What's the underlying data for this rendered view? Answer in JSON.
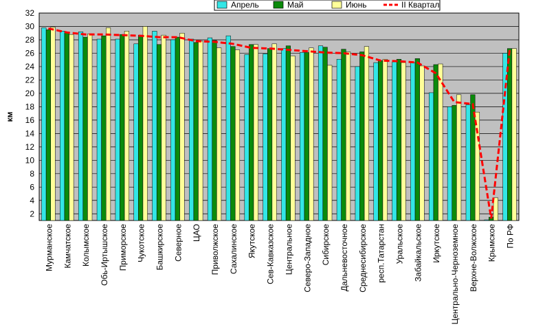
{
  "chart_data": {
    "type": "bar",
    "y_label": "км",
    "categories": [
      "Мурманское",
      "Камчатское",
      "Колымское",
      "Обь-Иртышское",
      "Приморское",
      "Чукотское",
      "Башкирское",
      "Северное",
      "ЦАО",
      "Приволжское",
      "Сахалинское",
      "Якутское",
      "Сев-Кавказское",
      "Центральное",
      "Северо-Западное",
      "Сибирское",
      "Дальневосточное",
      "Среднесибирское",
      "респ.Татарстан",
      "Уральское",
      "Забайкальское",
      "Иркутское",
      "Центрально-Черноземное",
      "Верхне-Волжское",
      "Крымское",
      "По РФ"
    ],
    "series": [
      {
        "name": "Апрель",
        "color": "#33e6e6",
        "values": [
          29.8,
          29.3,
          29.2,
          28.1,
          28.1,
          27.4,
          29.3,
          28.0,
          28.1,
          28.3,
          28.6,
          25.8,
          25.9,
          26.7,
          26.1,
          27.1,
          25.1,
          24.0,
          24.6,
          24.7,
          24.6,
          20.1,
          18.0,
          18.3,
          1.1,
          26.0
        ]
      },
      {
        "name": "Май",
        "color": "#0b8a0b",
        "values": [
          29.5,
          29.1,
          28.4,
          28.6,
          28.8,
          28.7,
          27.3,
          28.4,
          27.6,
          27.9,
          27.0,
          27.3,
          26.7,
          27.1,
          26.1,
          26.9,
          26.6,
          26.2,
          24.9,
          25.1,
          25.2,
          24.3,
          18.2,
          19.8,
          1.5,
          26.7
        ]
      },
      {
        "name": "Июнь",
        "color": "#ffff99",
        "values": [
          29.9,
          28.8,
          28.9,
          29.8,
          29.3,
          30.0,
          28.7,
          29.0,
          27.8,
          26.8,
          26.5,
          27.3,
          27.4,
          25.6,
          26.8,
          24.2,
          26.2,
          27.0,
          25.1,
          24.6,
          24.1,
          24.4,
          19.8,
          17.2,
          4.4,
          26.7
        ]
      },
      {
        "name": "II Квартал",
        "type": "line",
        "color": "#ff0000",
        "values": [
          29.7,
          29.1,
          28.8,
          28.8,
          28.7,
          28.6,
          28.4,
          28.4,
          27.8,
          27.7,
          27.4,
          26.8,
          26.7,
          26.5,
          26.3,
          26.1,
          26.0,
          25.7,
          24.9,
          24.8,
          24.6,
          23.0,
          18.7,
          18.4,
          1.3,
          26.5
        ]
      }
    ],
    "ylim": [
      1,
      32
    ],
    "yticks": [
      2,
      4,
      6,
      8,
      10,
      12,
      14,
      16,
      18,
      20,
      22,
      24,
      26,
      28,
      30,
      32
    ],
    "grid": true,
    "legend": "top"
  }
}
